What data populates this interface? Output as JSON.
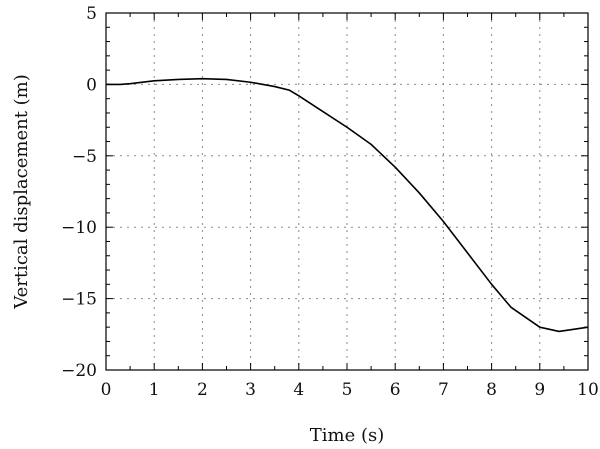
{
  "chart_data": {
    "type": "line",
    "title": "",
    "xlabel": "Time (s)",
    "ylabel": "Vertical displacement (m)",
    "xlim": [
      0,
      10
    ],
    "ylim": [
      -20,
      5
    ],
    "x_major_ticks": [
      0,
      1,
      2,
      3,
      4,
      5,
      6,
      7,
      8,
      9,
      10
    ],
    "y_major_ticks": [
      5,
      0,
      -5,
      -10,
      -15,
      -20
    ],
    "x_tick_labels": [
      "0",
      "1",
      "2",
      "3",
      "4",
      "5",
      "6",
      "7",
      "8",
      "9",
      "10"
    ],
    "y_tick_labels": [
      "5",
      "0",
      "−5",
      "−10",
      "−15",
      "−20"
    ],
    "x_minor_step": 0.5,
    "y_minor_step": 1,
    "grid": true,
    "legend": "none",
    "line_color": "#000000",
    "series": [
      {
        "x": [
          0,
          0.3,
          0.5,
          1.0,
          1.5,
          2.0,
          2.5,
          3.0,
          3.5,
          3.8,
          4.0,
          4.5,
          5.0,
          5.5,
          6.0,
          6.5,
          7.0,
          7.5,
          8.0,
          8.4,
          8.7,
          9.0,
          9.4,
          10.0
        ],
        "y": [
          0,
          0,
          0.05,
          0.25,
          0.35,
          0.4,
          0.35,
          0.15,
          -0.15,
          -0.4,
          -0.8,
          -1.9,
          -3.0,
          -4.2,
          -5.8,
          -7.6,
          -9.6,
          -11.8,
          -14.0,
          -15.6,
          -16.3,
          -17.0,
          -17.3,
          -17.0
        ]
      }
    ]
  }
}
